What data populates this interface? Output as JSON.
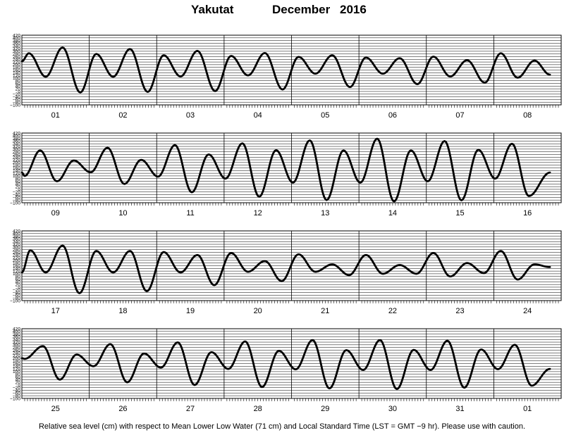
{
  "title": {
    "station": "Yakutat",
    "month": "December",
    "year": "2016"
  },
  "footnote": "Relative sea level (cm) with respect to Mean Lower Low Water (71 cm) and Local Standard Time (LST = GMT −9 hr). Please use with caution.",
  "chart_data": {
    "type": "line",
    "y_unit": "cm",
    "ylim": [
      -100,
      420
    ],
    "y_ticks": [
      "−100",
      "−80",
      "−60",
      "−40",
      "−20",
      "0",
      "20",
      "40",
      "60",
      "80",
      "100",
      "120",
      "140",
      "160",
      "180",
      "200",
      "220",
      "240",
      "260",
      "280",
      "300",
      "320",
      "340",
      "360",
      "380",
      "400",
      "420"
    ],
    "grid": true,
    "panels": [
      {
        "day_labels": [
          "01",
          "02",
          "03",
          "04",
          "05",
          "06",
          "07",
          "08"
        ],
        "start_level": 225,
        "extrema": [
          [
            2.5,
            285
          ],
          [
            8.5,
            110
          ],
          [
            14.5,
            328
          ],
          [
            20.8,
            -7
          ],
          [
            26.5,
            280
          ],
          [
            32.5,
            110
          ],
          [
            38.5,
            317
          ],
          [
            44.8,
            -3
          ],
          [
            50.5,
            270
          ],
          [
            56.5,
            112
          ],
          [
            62.5,
            303
          ],
          [
            68.8,
            3
          ],
          [
            74.5,
            265
          ],
          [
            80.5,
            120
          ],
          [
            86.5,
            287
          ],
          [
            92.8,
            15
          ],
          [
            98.5,
            258
          ],
          [
            104.5,
            133
          ],
          [
            110.5,
            270
          ],
          [
            116.8,
            33
          ],
          [
            122.5,
            253
          ],
          [
            128.5,
            133
          ],
          [
            134.5,
            248
          ],
          [
            140.8,
            55
          ],
          [
            146.5,
            260
          ],
          [
            152.5,
            112
          ],
          [
            158.5,
            233
          ],
          [
            164.8,
            66
          ],
          [
            170.5,
            285
          ],
          [
            176.5,
            103
          ],
          [
            182.5,
            230
          ],
          [
            188.0,
            125
          ]
        ]
      },
      {
        "day_labels": [
          "09",
          "10",
          "11",
          "12",
          "13",
          "14",
          "15",
          "16"
        ],
        "start_level": 125,
        "extrema": [
          [
            1.0,
            100
          ],
          [
            6.5,
            290
          ],
          [
            12.5,
            60
          ],
          [
            18.5,
            215
          ],
          [
            24.5,
            127
          ],
          [
            30.5,
            310
          ],
          [
            36.5,
            40
          ],
          [
            42.5,
            220
          ],
          [
            48.5,
            95
          ],
          [
            54.5,
            330
          ],
          [
            60.5,
            -22
          ],
          [
            66.5,
            260
          ],
          [
            72.5,
            80
          ],
          [
            78.5,
            343
          ],
          [
            84.5,
            -55
          ],
          [
            90.5,
            292
          ],
          [
            96.5,
            50
          ],
          [
            102.5,
            365
          ],
          [
            108.5,
            -80
          ],
          [
            114.5,
            290
          ],
          [
            120.5,
            50
          ],
          [
            126.5,
            378
          ],
          [
            132.5,
            -90
          ],
          [
            138.5,
            290
          ],
          [
            144.5,
            60
          ],
          [
            150.5,
            360
          ],
          [
            156.5,
            -82
          ],
          [
            162.5,
            295
          ],
          [
            168.5,
            80
          ],
          [
            174.5,
            340
          ],
          [
            180.5,
            -50
          ],
          [
            188.0,
            125
          ]
        ]
      },
      {
        "day_labels": [
          "17",
          "18",
          "19",
          "20",
          "21",
          "22",
          "23",
          "24"
        ],
        "start_level": 110,
        "extrema": [
          [
            3.0,
            275
          ],
          [
            8.5,
            110
          ],
          [
            14.5,
            310
          ],
          [
            20.5,
            -45
          ],
          [
            26.5,
            270
          ],
          [
            32.5,
            110
          ],
          [
            38.5,
            270
          ],
          [
            44.5,
            -30
          ],
          [
            50.5,
            262
          ],
          [
            56.5,
            110
          ],
          [
            62.5,
            240
          ],
          [
            68.5,
            15
          ],
          [
            74.5,
            255
          ],
          [
            80.5,
            115
          ],
          [
            86.5,
            195
          ],
          [
            92.5,
            45
          ],
          [
            98.5,
            245
          ],
          [
            104.5,
            115
          ],
          [
            110.5,
            170
          ],
          [
            116.5,
            90
          ],
          [
            122.5,
            240
          ],
          [
            128.5,
            100
          ],
          [
            134.5,
            165
          ],
          [
            140.5,
            100
          ],
          [
            146.5,
            255
          ],
          [
            152.5,
            80
          ],
          [
            158.5,
            180
          ],
          [
            164.5,
            105
          ],
          [
            170.5,
            270
          ],
          [
            176.5,
            57
          ],
          [
            182.5,
            170
          ],
          [
            188.0,
            150
          ]
        ]
      },
      {
        "day_labels": [
          "25",
          "26",
          "27",
          "28",
          "29",
          "30",
          "31",
          "01"
        ],
        "start_level": 200,
        "extrema": [
          [
            1.0,
            195
          ],
          [
            7.5,
            290
          ],
          [
            13.5,
            40
          ],
          [
            19.5,
            227
          ],
          [
            25.5,
            140
          ],
          [
            31.5,
            305
          ],
          [
            37.5,
            20
          ],
          [
            43.5,
            235
          ],
          [
            49.5,
            130
          ],
          [
            55.5,
            318
          ],
          [
            61.5,
            0
          ],
          [
            67.5,
            245
          ],
          [
            73.5,
            120
          ],
          [
            79.5,
            325
          ],
          [
            85.5,
            -15
          ],
          [
            91.5,
            255
          ],
          [
            97.5,
            117
          ],
          [
            103.5,
            335
          ],
          [
            109.5,
            -25
          ],
          [
            115.5,
            260
          ],
          [
            121.5,
            112
          ],
          [
            127.5,
            335
          ],
          [
            133.5,
            -30
          ],
          [
            139.5,
            262
          ],
          [
            145.5,
            112
          ],
          [
            151.5,
            330
          ],
          [
            157.5,
            -20
          ],
          [
            163.5,
            265
          ],
          [
            169.5,
            118
          ],
          [
            175.5,
            300
          ],
          [
            181.5,
            -5
          ],
          [
            188.0,
            120
          ]
        ]
      }
    ]
  }
}
